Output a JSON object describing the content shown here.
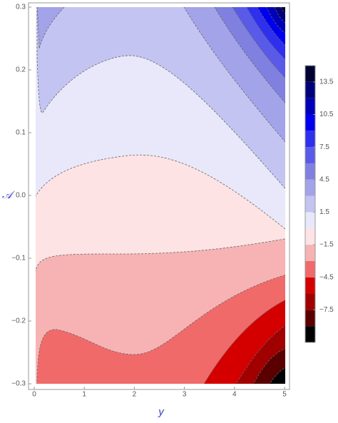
{
  "chart_data": {
    "type": "contour",
    "xlabel": "y",
    "ylabel": "𝒜",
    "xlim": [
      0,
      5
    ],
    "ylim": [
      -0.3,
      0.3
    ],
    "xticks": [
      0,
      1,
      2,
      3,
      4,
      5
    ],
    "yticks": [
      {
        "value": -0.3,
        "label": "−0.3"
      },
      {
        "value": -0.2,
        "label": "−0.2"
      },
      {
        "value": -0.1,
        "label": "−0.1"
      },
      {
        "value": 0,
        "label": "0.0"
      },
      0.1,
      0.2,
      0.3
    ],
    "colorbar": {
      "lim": [
        -10.5,
        15
      ],
      "levels": [
        -10.5,
        -9,
        -7.5,
        -6,
        -4.5,
        -3,
        -1.5,
        0,
        1.5,
        3,
        4.5,
        6,
        7.5,
        9,
        10.5,
        12,
        13.5,
        15
      ],
      "colors": [
        "#000000",
        "#5a0000",
        "#a00000",
        "#d40000",
        "#f06a6a",
        "#f7b3b3",
        "#fde3e3",
        "#e8e8fa",
        "#c4c4f2",
        "#a3a3ea",
        "#8080e0",
        "#5a5ae8",
        "#2f2fee",
        "#0000ee",
        "#0000b8",
        "#00007a",
        "#000033"
      ],
      "ticks": [
        {
          "value": -7.5,
          "label": "−7.5"
        },
        {
          "value": -4.5,
          "label": "−4.5"
        },
        {
          "value": -1.5,
          "label": "−1.5"
        },
        1.5,
        4.5,
        7.5,
        10.5,
        13.5
      ]
    }
  }
}
